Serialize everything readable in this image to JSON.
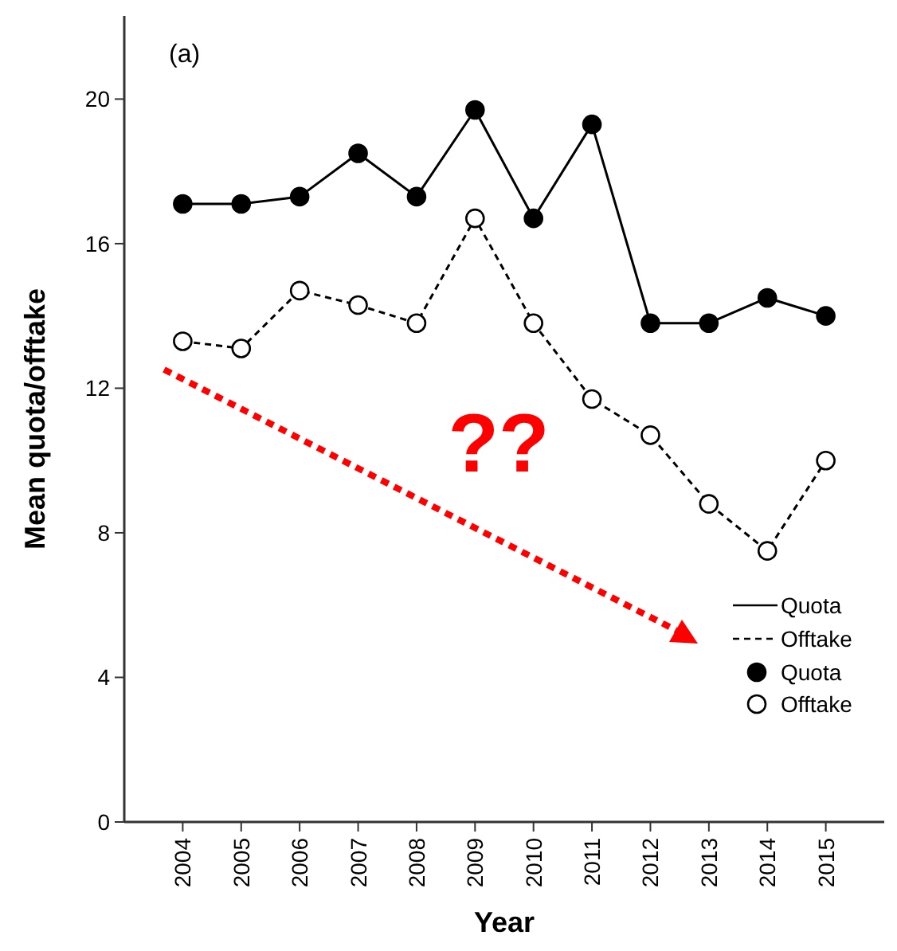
{
  "chart_data": {
    "type": "line",
    "xlabel": "Year",
    "ylabel": "Mean quota/offtake",
    "categories": [
      "2004",
      "2005",
      "2006",
      "2007",
      "2008",
      "2009",
      "2010",
      "2011",
      "2012",
      "2013",
      "2014",
      "2015"
    ],
    "series": [
      {
        "name": "Quota",
        "color": "#000000",
        "line_style": "solid",
        "values": [
          17.1,
          17.1,
          17.3,
          18.5,
          17.3,
          19.7,
          16.7,
          19.3,
          13.8,
          13.8,
          14.5,
          14.0
        ]
      },
      {
        "name": "Offtake",
        "color": "#000000",
        "line_style": "dashed",
        "values": [
          13.3,
          13.1,
          14.7,
          14.3,
          13.8,
          16.7,
          13.8,
          11.7,
          10.7,
          8.8,
          7.5,
          10.0
        ]
      }
    ],
    "ylim": [
      0,
      22.3
    ],
    "yticks": [
      0,
      4,
      8,
      12,
      16,
      20
    ],
    "marker": "circle",
    "grid": false,
    "legend": "bottom right",
    "annotations": [
      "(a)",
      "??"
    ]
  }
}
